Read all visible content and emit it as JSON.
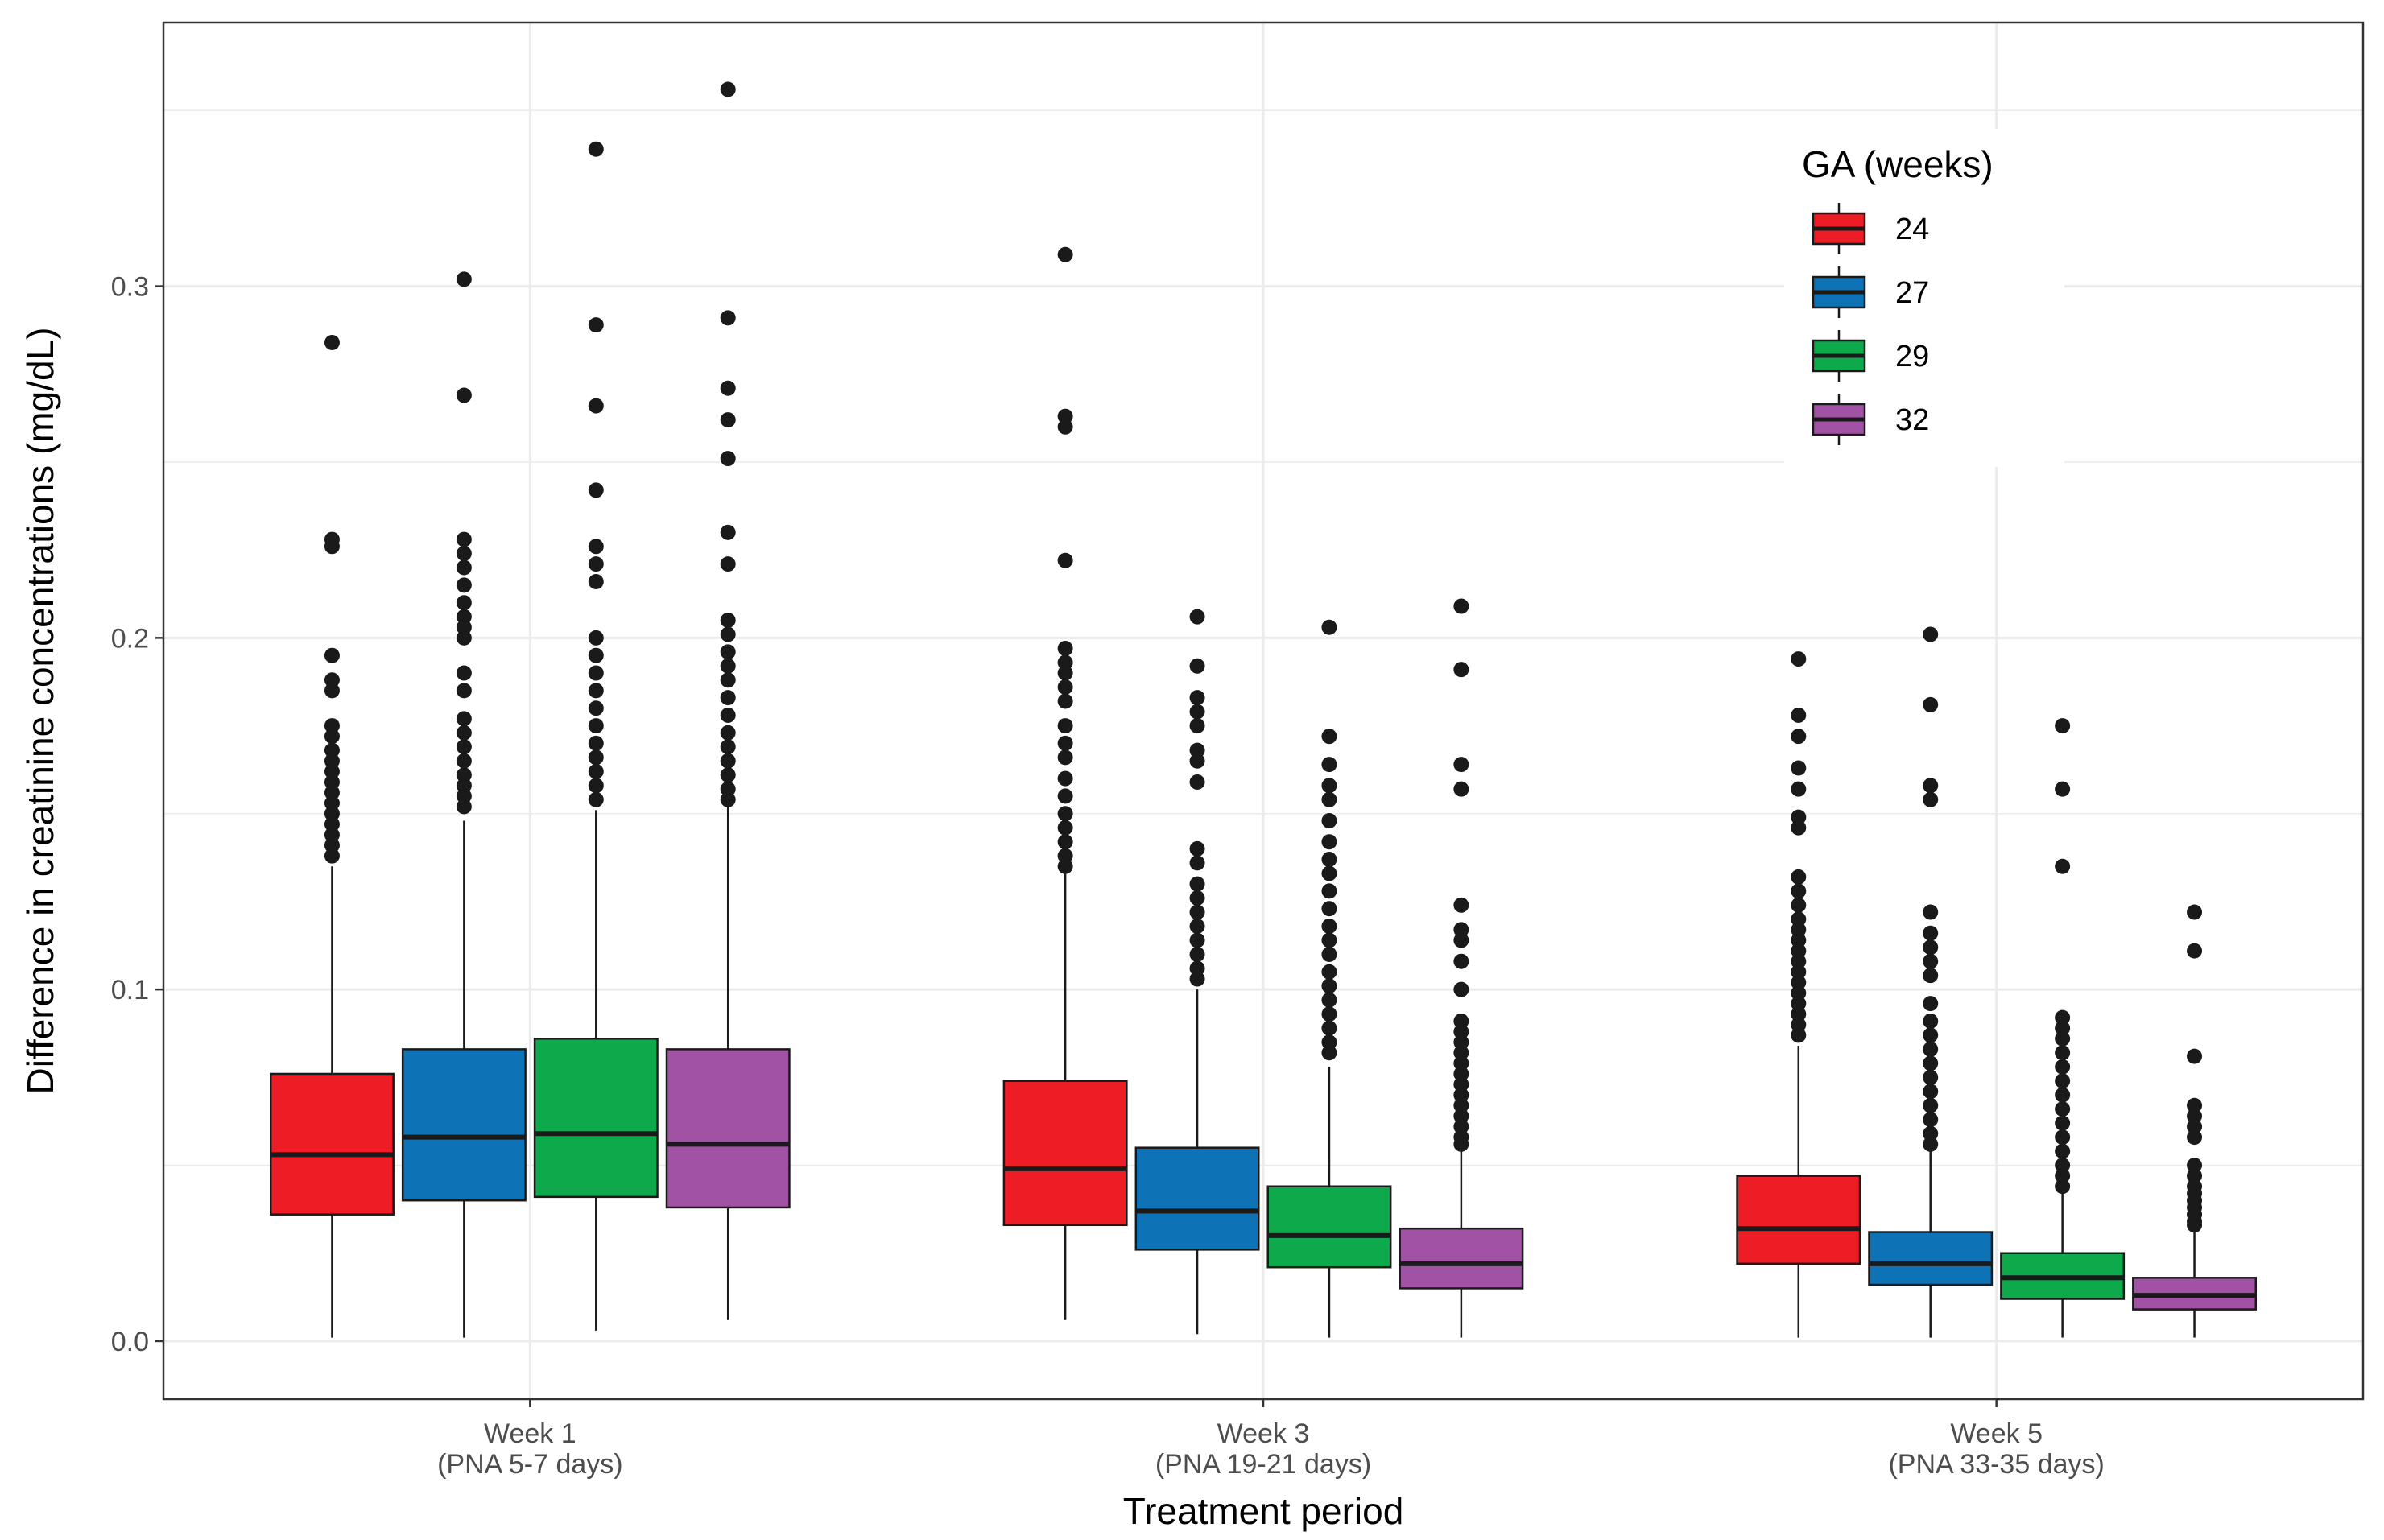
{
  "chart_data": {
    "type": "box",
    "title": "",
    "xlabel": "Treatment period",
    "ylabel": "Difference in creatinine concentrations (mg/dL)",
    "ylim": [
      -0.0165,
      0.375
    ],
    "yticks": [
      0.0,
      0.1,
      0.2,
      0.3
    ],
    "ytick_labels": [
      "0.0",
      "0.1",
      "0.2",
      "0.3"
    ],
    "grid": true,
    "legend": {
      "title": "GA (weeks)",
      "position": "top-right"
    },
    "categories": [
      {
        "line1": "Week 1",
        "line2": "(PNA 5-7 days)"
      },
      {
        "line1": "Week 3",
        "line2": "(PNA 19-21 days)"
      },
      {
        "line1": "Week 5",
        "line2": "(PNA 33-35 days)"
      }
    ],
    "series": [
      {
        "name": "24",
        "color": "#EE1C25",
        "boxes": [
          {
            "min": 0.001,
            "q1": 0.036,
            "median": 0.053,
            "q3": 0.076,
            "whisker_high": 0.135,
            "outliers": [
              0.284,
              0.228,
              0.226,
              0.195,
              0.188,
              0.185,
              0.175,
              0.172,
              0.168,
              0.165,
              0.162,
              0.159,
              0.156,
              0.153,
              0.15,
              0.147,
              0.144,
              0.141,
              0.138
            ]
          },
          {
            "min": 0.006,
            "q1": 0.033,
            "median": 0.049,
            "q3": 0.074,
            "whisker_high": 0.133,
            "outliers": [
              0.309,
              0.263,
              0.26,
              0.222,
              0.197,
              0.193,
              0.19,
              0.186,
              0.182,
              0.175,
              0.17,
              0.166,
              0.16,
              0.155,
              0.15,
              0.146,
              0.142,
              0.138,
              0.135
            ]
          },
          {
            "min": 0.001,
            "q1": 0.022,
            "median": 0.032,
            "q3": 0.047,
            "whisker_high": 0.084,
            "outliers": [
              0.194,
              0.178,
              0.172,
              0.163,
              0.157,
              0.149,
              0.146,
              0.132,
              0.128,
              0.124,
              0.12,
              0.117,
              0.114,
              0.111,
              0.108,
              0.105,
              0.102,
              0.099,
              0.096,
              0.093,
              0.09,
              0.087
            ]
          }
        ]
      },
      {
        "name": "27",
        "color": "#0E72B6",
        "boxes": [
          {
            "min": 0.001,
            "q1": 0.04,
            "median": 0.058,
            "q3": 0.083,
            "whisker_high": 0.148,
            "outliers": [
              0.302,
              0.269,
              0.228,
              0.224,
              0.22,
              0.215,
              0.21,
              0.206,
              0.203,
              0.2,
              0.19,
              0.185,
              0.177,
              0.173,
              0.169,
              0.165,
              0.161,
              0.158,
              0.155,
              0.152
            ]
          },
          {
            "min": 0.002,
            "q1": 0.026,
            "median": 0.037,
            "q3": 0.055,
            "whisker_high": 0.1,
            "outliers": [
              0.206,
              0.192,
              0.183,
              0.179,
              0.175,
              0.168,
              0.165,
              0.159,
              0.14,
              0.136,
              0.13,
              0.126,
              0.122,
              0.118,
              0.114,
              0.11,
              0.106,
              0.103
            ]
          },
          {
            "min": 0.001,
            "q1": 0.016,
            "median": 0.022,
            "q3": 0.031,
            "whisker_high": 0.054,
            "outliers": [
              0.201,
              0.181,
              0.158,
              0.154,
              0.122,
              0.116,
              0.112,
              0.108,
              0.104,
              0.096,
              0.091,
              0.087,
              0.083,
              0.079,
              0.075,
              0.071,
              0.067,
              0.063,
              0.059,
              0.056
            ]
          }
        ]
      },
      {
        "name": "29",
        "color": "#0EA94A",
        "boxes": [
          {
            "min": 0.003,
            "q1": 0.041,
            "median": 0.059,
            "q3": 0.086,
            "whisker_high": 0.151,
            "outliers": [
              0.339,
              0.289,
              0.266,
              0.242,
              0.226,
              0.221,
              0.216,
              0.2,
              0.195,
              0.19,
              0.185,
              0.18,
              0.175,
              0.17,
              0.166,
              0.162,
              0.158,
              0.154
            ]
          },
          {
            "min": 0.001,
            "q1": 0.021,
            "median": 0.03,
            "q3": 0.044,
            "whisker_high": 0.078,
            "outliers": [
              0.203,
              0.172,
              0.164,
              0.158,
              0.154,
              0.148,
              0.142,
              0.137,
              0.133,
              0.128,
              0.123,
              0.118,
              0.114,
              0.11,
              0.105,
              0.101,
              0.097,
              0.093,
              0.089,
              0.085,
              0.082
            ]
          },
          {
            "min": 0.001,
            "q1": 0.012,
            "median": 0.018,
            "q3": 0.025,
            "whisker_high": 0.042,
            "outliers": [
              0.175,
              0.157,
              0.135,
              0.092,
              0.089,
              0.086,
              0.082,
              0.078,
              0.074,
              0.07,
              0.066,
              0.062,
              0.058,
              0.054,
              0.05,
              0.047,
              0.044
            ]
          }
        ]
      },
      {
        "name": "32",
        "color": "#A252A4",
        "boxes": [
          {
            "min": 0.006,
            "q1": 0.038,
            "median": 0.056,
            "q3": 0.083,
            "whisker_high": 0.152,
            "outliers": [
              0.356,
              0.291,
              0.271,
              0.262,
              0.251,
              0.23,
              0.221,
              0.205,
              0.201,
              0.196,
              0.192,
              0.188,
              0.183,
              0.178,
              0.173,
              0.169,
              0.165,
              0.161,
              0.157,
              0.154
            ]
          },
          {
            "min": 0.001,
            "q1": 0.015,
            "median": 0.022,
            "q3": 0.032,
            "whisker_high": 0.054,
            "outliers": [
              0.209,
              0.191,
              0.164,
              0.157,
              0.124,
              0.117,
              0.114,
              0.108,
              0.1,
              0.091,
              0.088,
              0.085,
              0.082,
              0.079,
              0.076,
              0.073,
              0.07,
              0.067,
              0.064,
              0.061,
              0.058,
              0.056
            ]
          },
          {
            "min": 0.001,
            "q1": 0.009,
            "median": 0.013,
            "q3": 0.018,
            "whisker_high": 0.031,
            "outliers": [
              0.122,
              0.111,
              0.081,
              0.067,
              0.064,
              0.061,
              0.058,
              0.05,
              0.047,
              0.044,
              0.042,
              0.04,
              0.038,
              0.036,
              0.034,
              0.033
            ]
          }
        ]
      }
    ]
  }
}
